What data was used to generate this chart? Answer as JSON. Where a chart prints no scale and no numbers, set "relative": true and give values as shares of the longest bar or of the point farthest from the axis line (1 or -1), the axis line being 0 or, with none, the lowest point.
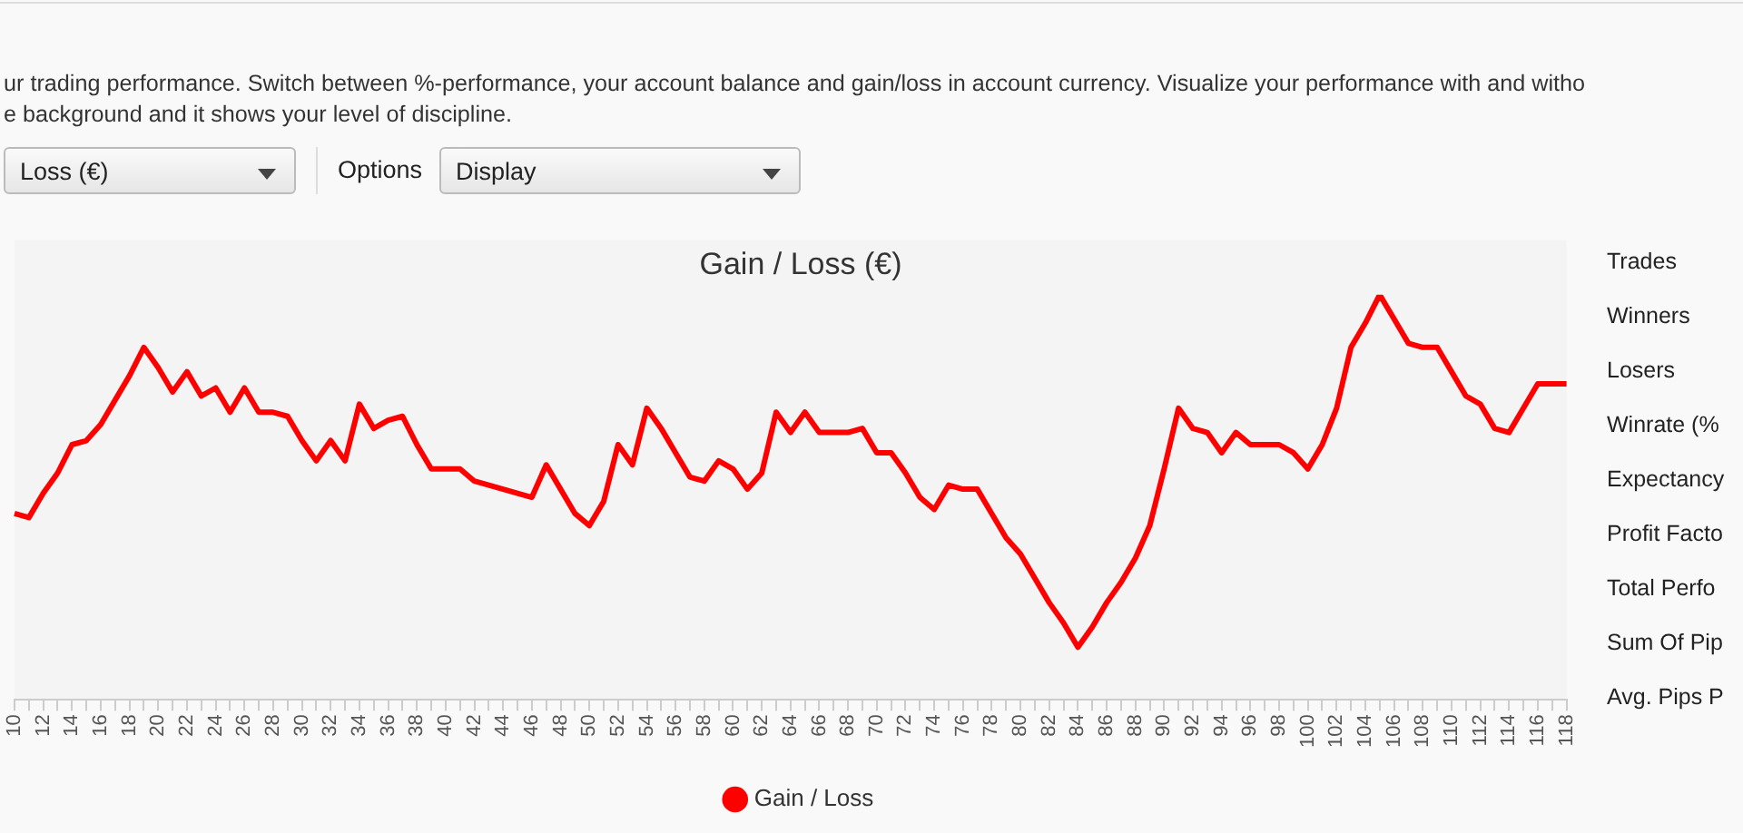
{
  "chart_data": {
    "type": "line",
    "title": "Gain / Loss (€)",
    "categories": [
      "10",
      null,
      "12",
      null,
      "14",
      null,
      "16",
      null,
      "18",
      null,
      "20",
      null,
      "22",
      null,
      "24",
      null,
      "26",
      null,
      "28",
      null,
      "30",
      null,
      "32",
      null,
      "34",
      null,
      "36",
      null,
      "38",
      null,
      "40",
      null,
      "42",
      null,
      "44",
      null,
      "46",
      null,
      "48",
      null,
      "50",
      null,
      "52",
      null,
      "54",
      null,
      "56",
      null,
      "58",
      null,
      "60",
      null,
      "62",
      null,
      "64",
      null,
      "66",
      null,
      "68",
      null,
      "70",
      null,
      "72",
      null,
      "74",
      null,
      "76",
      null,
      "78",
      null,
      "80",
      null,
      "82",
      null,
      "84",
      null,
      "86",
      null,
      "88",
      null,
      "90",
      null,
      "92",
      null,
      "94",
      null,
      "96",
      null,
      "98",
      null,
      "100",
      null,
      "102",
      null,
      "104",
      null,
      "106",
      null,
      "108",
      null,
      "110",
      null,
      "112",
      null,
      "114",
      null,
      "116",
      null,
      "118"
    ],
    "series": [
      {
        "name": "Gain / Loss",
        "color": "#ff0000",
        "values": [
          0.46,
          0.45,
          0.51,
          0.56,
          0.63,
          0.64,
          0.68,
          0.74,
          0.8,
          0.87,
          0.82,
          0.76,
          0.81,
          0.75,
          0.77,
          0.71,
          0.77,
          0.71,
          0.71,
          0.7,
          0.64,
          0.59,
          0.64,
          0.59,
          0.73,
          0.67,
          0.69,
          0.7,
          0.63,
          0.57,
          0.57,
          0.57,
          0.54,
          0.53,
          0.52,
          0.51,
          0.5,
          0.58,
          0.52,
          0.46,
          0.43,
          0.49,
          0.63,
          0.58,
          0.72,
          0.67,
          0.61,
          0.55,
          0.54,
          0.59,
          0.57,
          0.52,
          0.56,
          0.71,
          0.66,
          0.71,
          0.66,
          0.66,
          0.66,
          0.67,
          0.61,
          0.61,
          0.56,
          0.5,
          0.47,
          0.53,
          0.52,
          0.52,
          0.46,
          0.4,
          0.36,
          0.3,
          0.24,
          0.19,
          0.13,
          0.18,
          0.24,
          0.29,
          0.35,
          0.43,
          0.57,
          0.72,
          0.67,
          0.66,
          0.61,
          0.66,
          0.63,
          0.63,
          0.63,
          0.61,
          0.57,
          0.63,
          0.72,
          0.87,
          0.93,
          1,
          0.94,
          0.88,
          0.87,
          0.87,
          0.81,
          0.75,
          0.73,
          0.67,
          0.66,
          0.72,
          0.78,
          0.78,
          0.78
        ]
      }
    ],
    "relative": true,
    "legend": "bottom",
    "grid": false,
    "marker": "none",
    "line_style": "solid",
    "annotations": [
      "ur trading performance. Switch between %-performance, your account balance and gain/loss in account currency. Visualize your performance with and witho",
      "e background and it shows your level of discipline.",
      "Loss (€)",
      "Options",
      "Display",
      "Trades",
      "Winners",
      "Losers",
      "Winrate (%",
      "Expectancy",
      "Profit Facto",
      "Total Perfo",
      "Sum Of Pip",
      "Avg. Pips P"
    ]
  }
}
